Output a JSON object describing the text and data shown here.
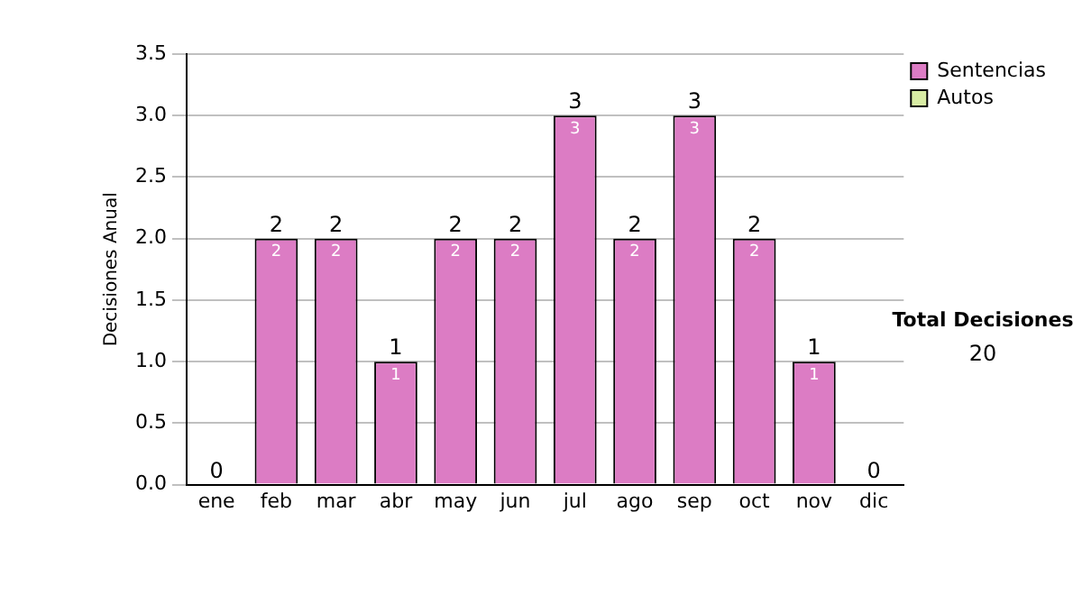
{
  "chart_data": {
    "type": "bar",
    "ylabel": "Decisiones Anual",
    "categories": [
      "ene",
      "feb",
      "mar",
      "abr",
      "may",
      "jun",
      "jul",
      "ago",
      "sep",
      "oct",
      "nov",
      "dic"
    ],
    "series": [
      {
        "name": "Sentencias",
        "color": "#dc7cc4",
        "values": [
          0,
          2,
          2,
          1,
          2,
          2,
          3,
          2,
          3,
          2,
          1,
          0
        ],
        "value_labels": [
          null,
          "2",
          "2",
          "1",
          "2",
          "2",
          "3",
          "2",
          "3",
          "2",
          "1",
          null
        ]
      },
      {
        "name": "Autos",
        "color": "#d8eca4",
        "values": [
          0,
          0,
          0,
          0,
          0,
          0,
          0,
          0,
          0,
          0,
          0,
          0
        ]
      }
    ],
    "stacked": true,
    "totals": [
      "0",
      "2",
      "2",
      "1",
      "2",
      "2",
      "3",
      "2",
      "3",
      "2",
      "1",
      "0"
    ],
    "ylim": [
      0,
      3.5
    ],
    "yticks": [
      {
        "value": 0,
        "label": "0.0"
      },
      {
        "value": 0.5,
        "label": "0.5"
      },
      {
        "value": 1,
        "label": "1.0"
      },
      {
        "value": 1.5,
        "label": "1.5"
      },
      {
        "value": 2,
        "label": "2.0"
      },
      {
        "value": 2.5,
        "label": "2.5"
      },
      {
        "value": 3,
        "label": "3.0"
      },
      {
        "value": 3.5,
        "label": "3.5"
      }
    ],
    "grid": "y",
    "legend": "right",
    "annotations": [
      "Total Decisiones",
      "20"
    ]
  }
}
